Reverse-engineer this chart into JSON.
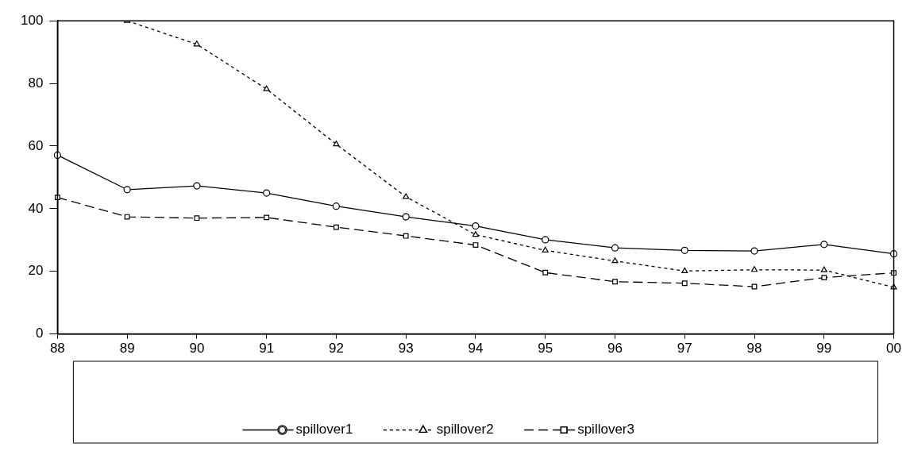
{
  "chart_data": {
    "type": "line",
    "categories": [
      "88",
      "89",
      "90",
      "91",
      "92",
      "93",
      "94",
      "95",
      "96",
      "97",
      "98",
      "99",
      "00"
    ],
    "series": [
      {
        "name": "spillover1",
        "color": "#000000",
        "line_style": "solid",
        "marker": "circle",
        "values": [
          57.1,
          46.1,
          47.3,
          45.0,
          40.8,
          37.4,
          34.5,
          30.1,
          27.5,
          26.7,
          26.5,
          28.6,
          25.6
        ]
      },
      {
        "name": "spillover2",
        "color": "#000000",
        "line_style": "dotted",
        "marker": "triangle",
        "values": [
          null,
          100,
          92.5,
          78.2,
          60.6,
          43.8,
          31.7,
          26.7,
          23.3,
          20.1,
          20.5,
          20.4,
          14.9
        ]
      },
      {
        "name": "spillover3",
        "color": "#000000",
        "line_style": "dashed",
        "marker": "square",
        "values": [
          43.6,
          37.4,
          37.0,
          37.2,
          34.1,
          31.3,
          28.4,
          19.6,
          16.7,
          16.2,
          15.1,
          18.0,
          19.5
        ]
      }
    ],
    "ylim": [
      0,
      100
    ],
    "yticks": [
      0,
      20,
      40,
      60,
      80,
      100
    ],
    "grid": false,
    "legend": "bottom"
  }
}
